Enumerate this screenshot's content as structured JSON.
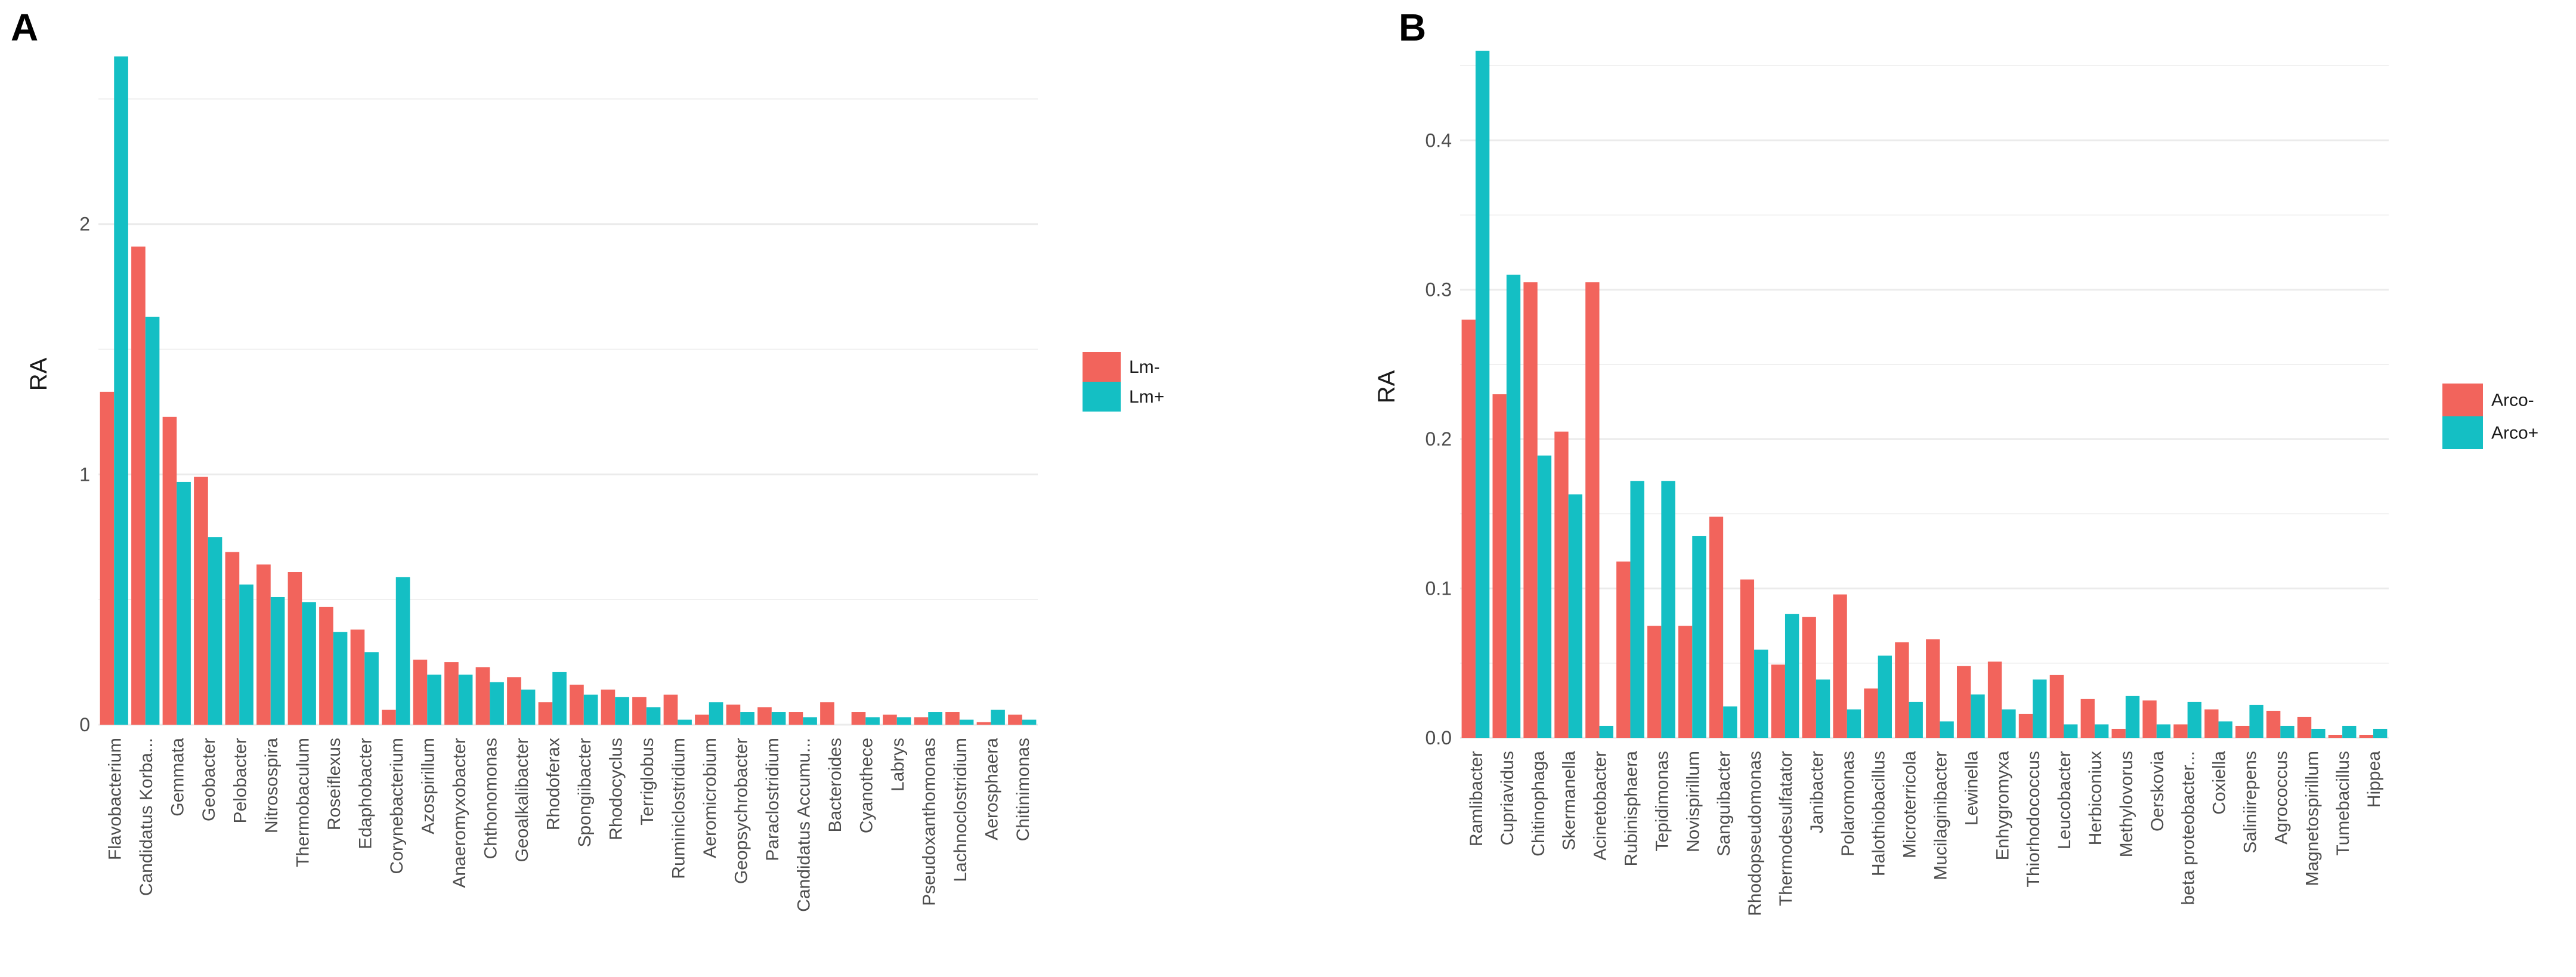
{
  "figure_title": "",
  "colors": {
    "grid": "#ebebeb",
    "text": "#4d4d4d",
    "label": "#1a1a1a",
    "background": "#ffffff"
  },
  "chart_data": [
    {
      "panel_label": "A",
      "type": "bar",
      "title": "",
      "xlabel": "",
      "ylabel": "RA",
      "ylim": [
        0,
        2.8
      ],
      "yticks": [
        0,
        1,
        2
      ],
      "ytick_labels": [
        "0",
        "1",
        "2"
      ],
      "grid": true,
      "legend_position": "right",
      "categories": [
        "Flavobacterium",
        "Candidatus Korba...",
        "Gemmata",
        "Geobacter",
        "Pelobacter",
        "Nitrosospira",
        "Thermobaculum",
        "Roseiflexus",
        "Edaphobacter",
        "Corynebacterium",
        "Azospirillum",
        "Anaeromyxobacter",
        "Chthonomonas",
        "Geoalkalibacter",
        "Rhodoferax",
        "Spongiibacter",
        "Rhodocyclus",
        "Terriglobus",
        "Ruminiclostridium",
        "Aeromicrobium",
        "Geopsychrobacter",
        "Paraclostridium",
        "Candidatus Accumu...",
        "Bacteroides",
        "Cyanothece",
        "Labrys",
        "Pseudoxanthomonas",
        "Lachnoclostridium",
        "Aerosphaera",
        "Chitinimonas"
      ],
      "series": [
        {
          "name": "Lm-",
          "color": "#f2645c",
          "values": [
            1.33,
            1.91,
            1.23,
            0.99,
            0.69,
            0.64,
            0.61,
            0.47,
            0.38,
            0.06,
            0.26,
            0.25,
            0.23,
            0.19,
            0.09,
            0.16,
            0.14,
            0.11,
            0.12,
            0.04,
            0.08,
            0.07,
            0.05,
            0.09,
            0.05,
            0.04,
            0.03,
            0.05,
            0.01,
            0.04
          ]
        },
        {
          "name": "Lm+",
          "color": "#14bfc4",
          "values": [
            2.67,
            1.63,
            0.97,
            0.75,
            0.56,
            0.51,
            0.49,
            0.37,
            0.29,
            0.59,
            0.2,
            0.2,
            0.17,
            0.14,
            0.21,
            0.12,
            0.11,
            0.07,
            0.02,
            0.09,
            0.05,
            0.05,
            0.03,
            0.0,
            0.03,
            0.03,
            0.05,
            0.02,
            0.06,
            0.02
          ]
        }
      ]
    },
    {
      "panel_label": "B",
      "type": "bar",
      "title": "",
      "xlabel": "",
      "ylabel": "RA",
      "ylim": [
        0,
        0.47
      ],
      "yticks": [
        0.0,
        0.1,
        0.2,
        0.3,
        0.4
      ],
      "ytick_labels": [
        "0.0",
        "0.1",
        "0.2",
        "0.3",
        "0.4"
      ],
      "grid": true,
      "legend_position": "right",
      "categories": [
        "Ramlibacter",
        "Cupriavidus",
        "Chitinophaga",
        "Skermanella",
        "Acinetobacter",
        "Rubinisphaera",
        "Tepidimonas",
        "Novispirillum",
        "Sanguibacter",
        "Rhodopseudomonas",
        "Thermodesulfatator",
        "Janibacter",
        "Polaromonas",
        "Halothiobacillus",
        "Microterricola",
        "Mucilaginibacter",
        "Lewinella",
        "Enhygromyxa",
        "Thiorhodococcus",
        "Leucobacter",
        "Herbiconiux",
        "Methylovorus",
        "Oerskovia",
        "beta proteobacter...",
        "Coxiella",
        "Saliniirepens",
        "Agrococcus",
        "Magnetospirillum",
        "Tumebacillus",
        "Hippea"
      ],
      "series": [
        {
          "name": "Arco-",
          "color": "#f2645c",
          "values": [
            0.28,
            0.23,
            0.305,
            0.205,
            0.305,
            0.118,
            0.075,
            0.075,
            0.148,
            0.106,
            0.049,
            0.081,
            0.096,
            0.033,
            0.064,
            0.066,
            0.048,
            0.051,
            0.016,
            0.042,
            0.026,
            0.006,
            0.025,
            0.009,
            0.019,
            0.008,
            0.018,
            0.014,
            0.002,
            0.002
          ]
        },
        {
          "name": "Arco+",
          "color": "#14bfc4",
          "values": [
            0.46,
            0.31,
            0.189,
            0.163,
            0.008,
            0.172,
            0.172,
            0.135,
            0.021,
            0.059,
            0.083,
            0.039,
            0.019,
            0.055,
            0.024,
            0.011,
            0.029,
            0.019,
            0.039,
            0.009,
            0.009,
            0.028,
            0.009,
            0.024,
            0.011,
            0.022,
            0.008,
            0.006,
            0.008,
            0.006
          ]
        }
      ]
    }
  ]
}
